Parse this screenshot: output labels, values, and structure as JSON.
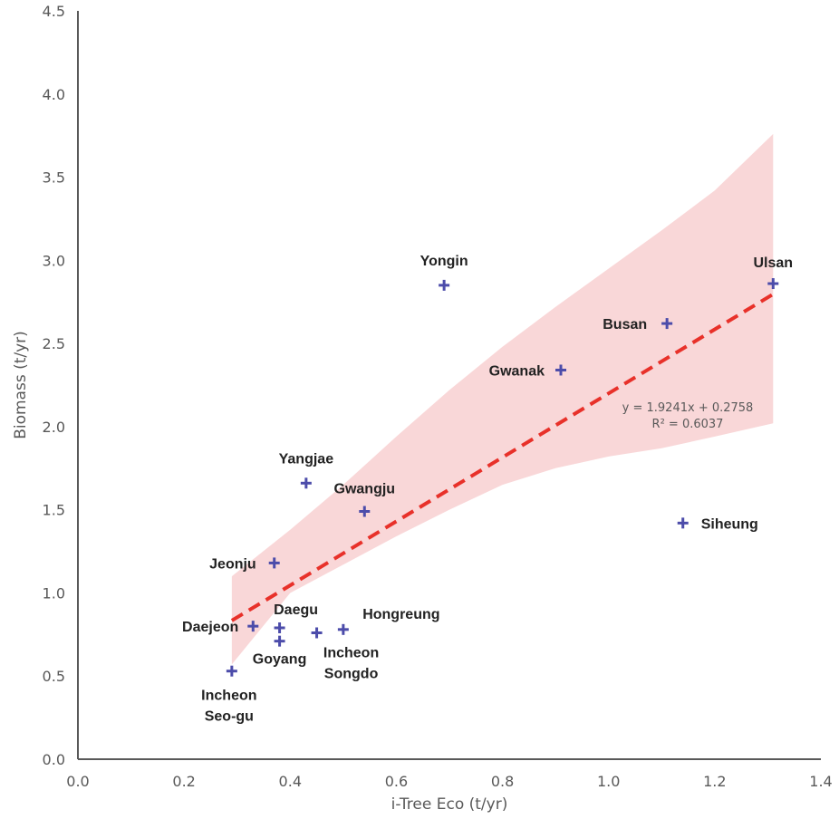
{
  "chart_data": {
    "type": "scatter",
    "xlabel": "i-Tree Eco (t/yr)",
    "ylabel": "Biomass (t/yr)",
    "xlim": [
      0,
      1.4
    ],
    "ylim": [
      0,
      4.5
    ],
    "x_ticks": [
      "0.0",
      "0.2",
      "0.4",
      "0.6",
      "0.8",
      "1.0",
      "1.2",
      "1.4"
    ],
    "y_ticks": [
      "0.0",
      "0.5",
      "1.0",
      "1.5",
      "2.0",
      "2.5",
      "3.0",
      "3.5",
      "4.0",
      "4.5"
    ],
    "grid": false,
    "points": [
      {
        "label": [
          "Yongin"
        ],
        "x": 0.69,
        "y": 2.85
      },
      {
        "label": [
          "Ulsan"
        ],
        "x": 1.31,
        "y": 2.86
      },
      {
        "label": [
          "Busan"
        ],
        "x": 1.11,
        "y": 2.62
      },
      {
        "label": [
          "Gwanak"
        ],
        "x": 0.91,
        "y": 2.34
      },
      {
        "label": [
          "Yangjae"
        ],
        "x": 0.43,
        "y": 1.66
      },
      {
        "label": [
          "Gwangju"
        ],
        "x": 0.54,
        "y": 1.49
      },
      {
        "label": [
          "Siheung"
        ],
        "x": 1.14,
        "y": 1.42
      },
      {
        "label": [
          "Jeonju"
        ],
        "x": 0.37,
        "y": 1.18
      },
      {
        "label": [
          "Daejeon"
        ],
        "x": 0.33,
        "y": 0.8
      },
      {
        "label": [
          "Daegu"
        ],
        "x": 0.38,
        "y": 0.79
      },
      {
        "label": [
          "Goyang"
        ],
        "x": 0.38,
        "y": 0.71
      },
      {
        "label": [
          "Incheon",
          "Songdo"
        ],
        "x": 0.45,
        "y": 0.76
      },
      {
        "label": [
          "Hongreung"
        ],
        "x": 0.5,
        "y": 0.78
      },
      {
        "label": [
          "Incheon",
          "Seo-gu"
        ],
        "x": 0.29,
        "y": 0.53
      }
    ],
    "trendline": {
      "style": "dashed",
      "color": "#e8312a",
      "slope": 1.9241,
      "intercept": 0.2758,
      "x_range": [
        0.29,
        1.31
      ],
      "equation": "y = 1.9241x + 0.2758",
      "r_squared": "R² = 0.6037"
    },
    "confidence_band": {
      "color": "#f4b6b8",
      "x": [
        0.29,
        0.4,
        0.5,
        0.6,
        0.7,
        0.8,
        0.9,
        1.0,
        1.1,
        1.2,
        1.31
      ],
      "upper": [
        1.1,
        1.38,
        1.65,
        1.94,
        2.22,
        2.48,
        2.72,
        2.95,
        3.18,
        3.42,
        3.76
      ],
      "lower": [
        0.57,
        1.0,
        1.17,
        1.34,
        1.5,
        1.65,
        1.75,
        1.82,
        1.87,
        1.94,
        2.02
      ]
    },
    "marker": {
      "shape": "plus",
      "color": "#4c4caa"
    },
    "axis_color": "#595959"
  }
}
